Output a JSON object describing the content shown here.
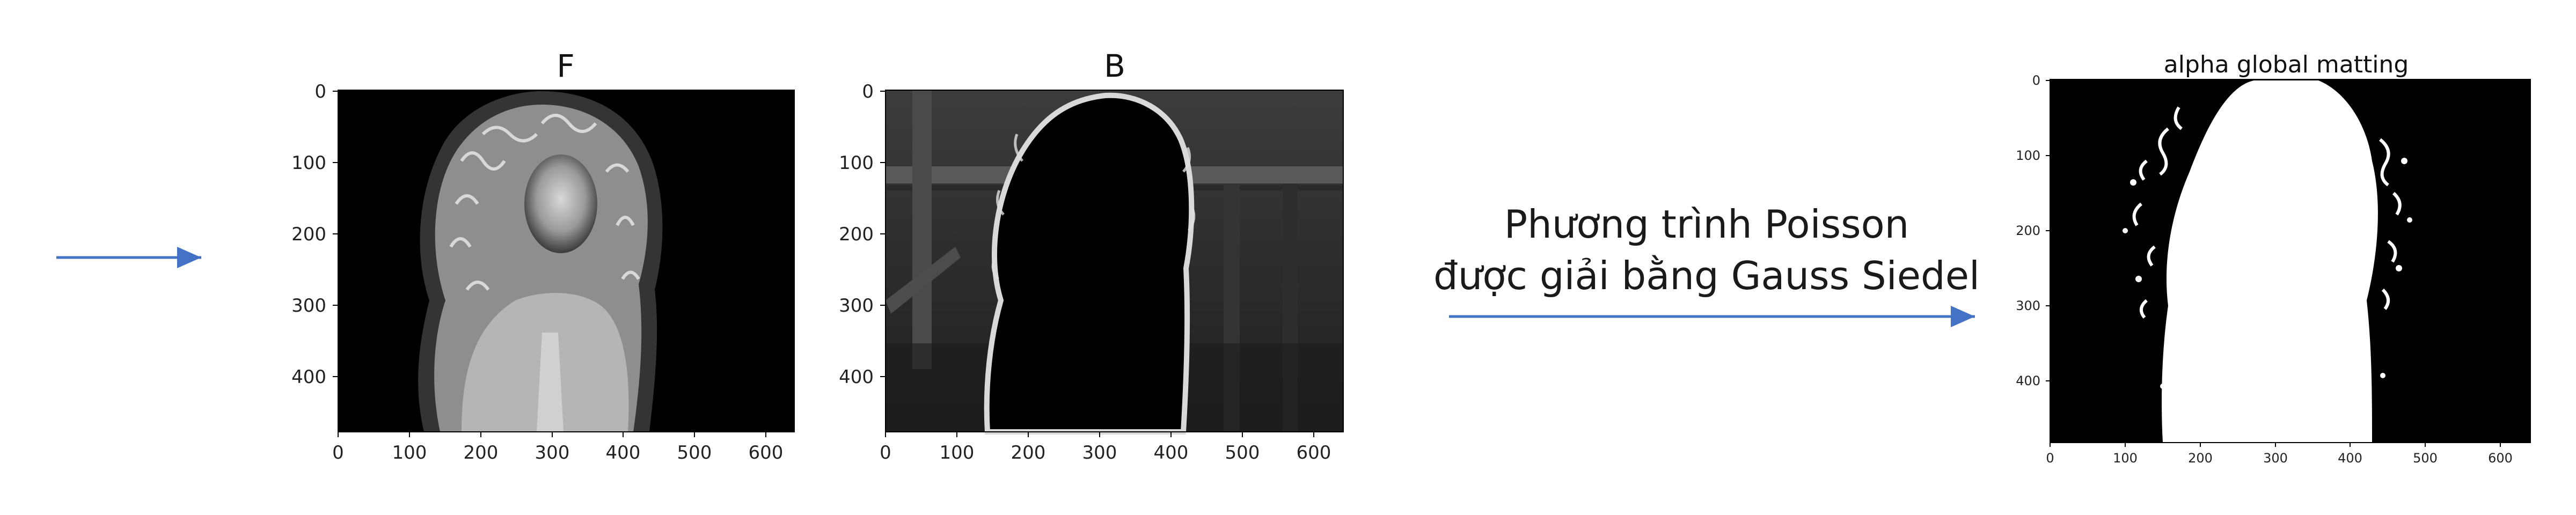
{
  "colors": {
    "arrow": "#4472C4",
    "plot_background": "#000000",
    "foreground_white": "#ffffff"
  },
  "caption": {
    "line1": "Phương trình Poisson",
    "line2": "được giải bằng Gauss Siedel"
  },
  "panels": [
    {
      "title": "F",
      "image_description_kind": "grayscale image of curly-haired woman on black background",
      "x_ticks": [
        "0",
        "100",
        "200",
        "300",
        "400",
        "500",
        "600"
      ],
      "y_ticks": [
        "0",
        "100",
        "200",
        "300",
        "400"
      ]
    },
    {
      "title": "B",
      "image_description_kind": "grayscale background with black silhouette",
      "x_ticks": [
        "0",
        "100",
        "200",
        "300",
        "400",
        "500",
        "600"
      ],
      "y_ticks": [
        "0",
        "100",
        "200",
        "300",
        "400"
      ]
    },
    {
      "title": "alpha global matting",
      "image_description_kind": "binary alpha matte",
      "x_ticks": [
        "0",
        "100",
        "200",
        "300",
        "400",
        "500",
        "600"
      ],
      "y_ticks": [
        "0",
        "100",
        "200",
        "300",
        "400"
      ]
    }
  ]
}
